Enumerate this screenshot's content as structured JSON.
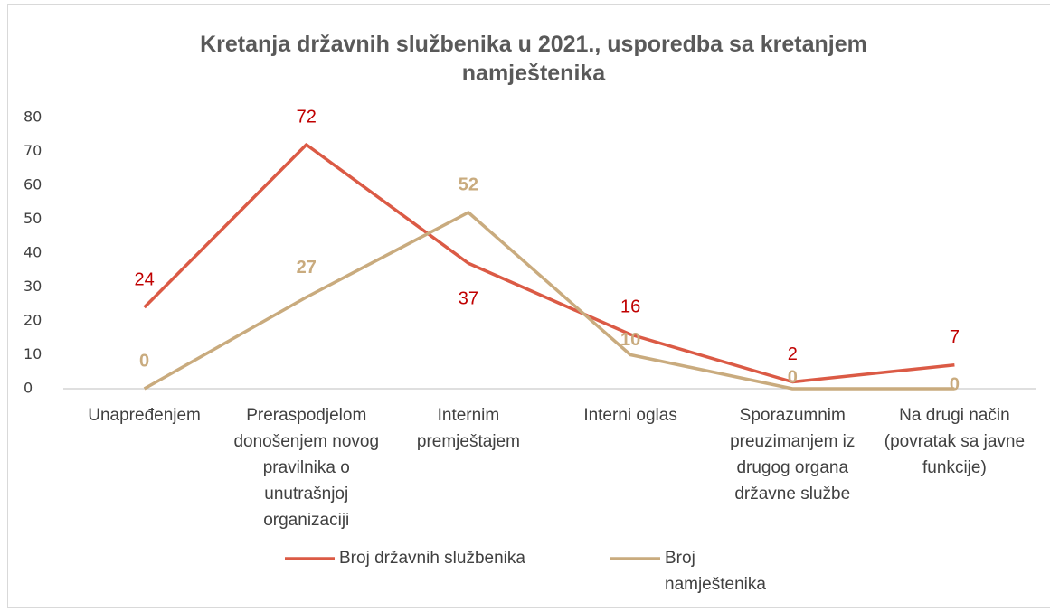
{
  "chart_data": {
    "type": "line",
    "title": "Kretanja državnih službenika u 2021., usporedba sa kretanjem namještenika",
    "categories": [
      "Unapređenjem",
      "Preraspodjelom donošenjem novog pravilnika o unutrašnjoj organizaciji",
      "Internim premještajem",
      "Interni oglas",
      "Sporazumnim preuzimanjem iz drugog organa državne službe",
      "Na drugi način (povratak sa javne funkcije)"
    ],
    "series": [
      {
        "name": "Broj državnih službenika",
        "color": "#db5a45",
        "label_color": "#c00000",
        "values": [
          24,
          72,
          37,
          16,
          2,
          7
        ]
      },
      {
        "name": "Broj namještenika",
        "color": "#c9ab7e",
        "label_color": "#c9ab7e",
        "values": [
          0,
          27,
          52,
          10,
          0,
          0
        ]
      }
    ],
    "ylim": [
      0,
      80
    ],
    "yticks": [
      0,
      10,
      20,
      30,
      40,
      50,
      60,
      70,
      80
    ],
    "grid": false,
    "legend": "bottom"
  }
}
